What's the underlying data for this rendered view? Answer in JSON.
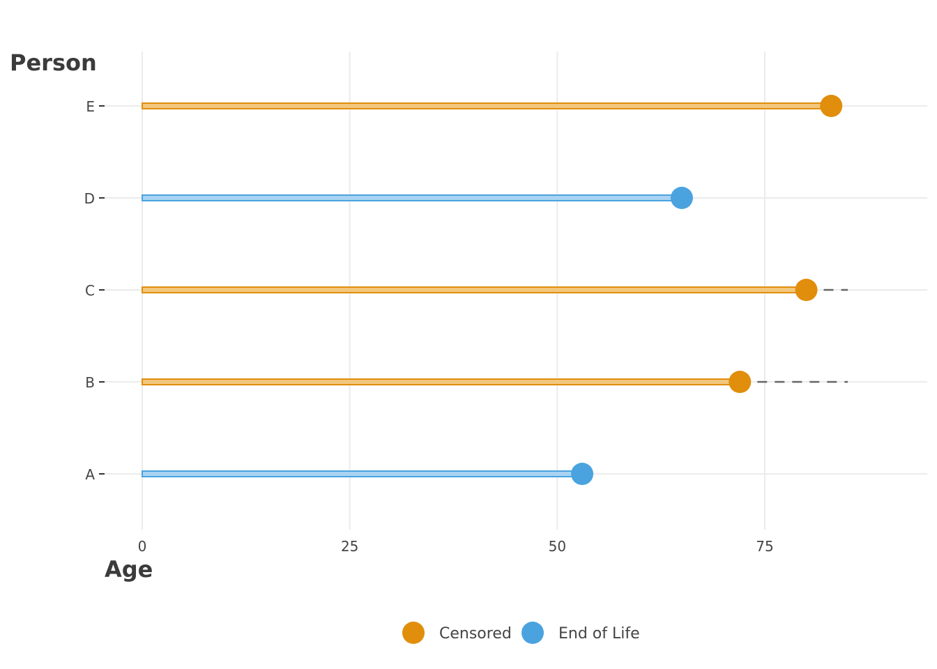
{
  "chart_data": {
    "type": "lollipop",
    "xlabel": "Age",
    "ylabel": "Person",
    "xlim": [
      0,
      94
    ],
    "x_ticks": [
      0,
      25,
      50,
      75
    ],
    "x_tick_labels": [
      "0",
      "25",
      "50",
      "75"
    ],
    "categories": [
      "A",
      "B",
      "C",
      "D",
      "E"
    ],
    "series": [
      {
        "person": "A",
        "age": 53,
        "status": "End of Life",
        "projected_to": null
      },
      {
        "person": "B",
        "age": 72,
        "status": "Censored",
        "projected_to": 85
      },
      {
        "person": "C",
        "age": 80,
        "status": "Censored",
        "projected_to": 85
      },
      {
        "person": "D",
        "age": 65,
        "status": "End of Life",
        "projected_to": null
      },
      {
        "person": "E",
        "age": 83,
        "status": "Censored",
        "projected_to": 85
      }
    ],
    "legend": [
      {
        "label": "Censored",
        "color": "#E08E0B",
        "light": "#F2C77D"
      },
      {
        "label": "End of Life",
        "color": "#4AA3DF",
        "light": "#A9D3F2"
      }
    ],
    "legend_position": "bottom",
    "grid": true
  }
}
